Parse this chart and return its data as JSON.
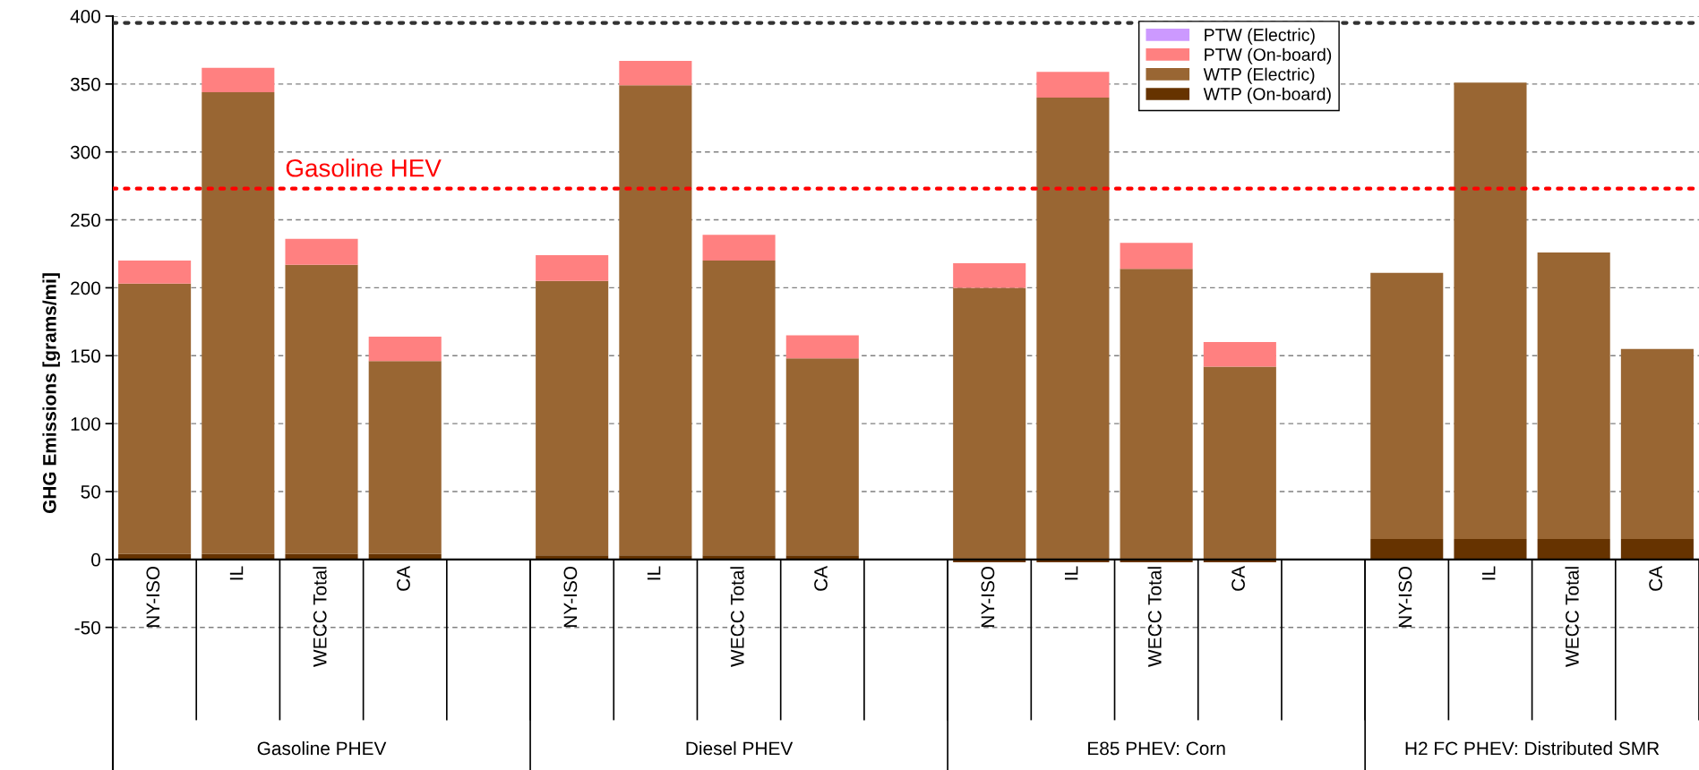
{
  "chart_data": {
    "type": "bar",
    "stacked": true,
    "ylabel": "GHG Emissions [grams/mi]",
    "categories": [
      "NY-ISO",
      "IL",
      "WECC Total",
      "CA",
      null,
      "NY-ISO",
      "IL",
      "WECC Total",
      "CA",
      null,
      "NY-ISO",
      "IL",
      "WECC Total",
      "CA",
      null,
      "NY-ISO",
      "IL",
      "WECC Total",
      "CA"
    ],
    "series": [
      {
        "name": "WTP (On-board)",
        "color": "#663300",
        "values": [
          4,
          4,
          4,
          4,
          null,
          3,
          3,
          3,
          3,
          null,
          -2,
          -2,
          -2,
          -2,
          null,
          15,
          15,
          15,
          15
        ]
      },
      {
        "name": "WTP (Electric)",
        "color": "#996633",
        "values": [
          199,
          340,
          213,
          142,
          null,
          202,
          346,
          217,
          145,
          null,
          200,
          340,
          214,
          142,
          null,
          196,
          336,
          211,
          140
        ]
      },
      {
        "name": "PTW (On-board)",
        "color": "#ff8080",
        "values": [
          17,
          18,
          19,
          18,
          null,
          19,
          18,
          19,
          17,
          null,
          18,
          19,
          19,
          18,
          null,
          0,
          0,
          0,
          0
        ]
      },
      {
        "name": "PTW (Electric)",
        "color": "#cc99ff",
        "values": [
          0,
          0,
          0,
          0,
          null,
          0,
          0,
          0,
          0,
          null,
          0,
          0,
          0,
          0,
          null,
          0,
          0,
          0,
          0
        ]
      }
    ],
    "ylim": [
      -155,
      400
    ],
    "yticks": [
      -50,
      0,
      50,
      100,
      150,
      200,
      250,
      300,
      350,
      400
    ],
    "grid": "y",
    "legend": "top",
    "ref_lines": [
      {
        "axis": "y",
        "value": 273,
        "label": "Gasoline HEV",
        "color": "#ff0000",
        "line_style": "dotted"
      },
      {
        "axis": "y",
        "value": 395,
        "color": "#333333",
        "line_style": "dotted"
      }
    ],
    "annotations": [
      "Gasoline PHEV",
      "Diesel PHEV",
      "E85 PHEV: Corn",
      "H2 FC PHEV: Distributed SMR"
    ]
  }
}
